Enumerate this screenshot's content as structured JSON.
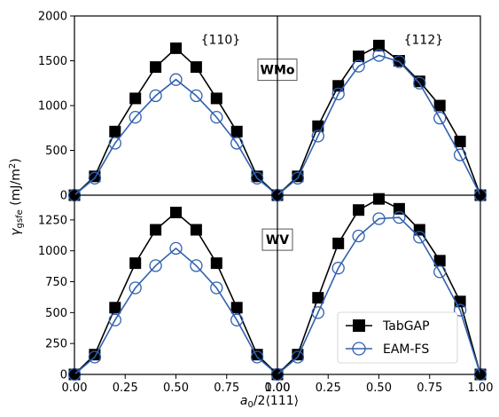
{
  "figure": {
    "xlabel_main": "a",
    "xlabel_sub": "0",
    "xlabel_rest": "/2⟨111⟩",
    "ylabel_main": "γ",
    "ylabel_sub": "gsfe",
    "ylabel_rest": " (mJ/m",
    "ylabel_sup": "2",
    "ylabel_end": ")"
  },
  "legend": {
    "position": "lower-right of bottom-right panel",
    "entries": [
      {
        "label": "TabGAP",
        "color": "#000000",
        "marker": "square-filled"
      },
      {
        "label": "EAM-FS",
        "color": "#3060b0",
        "marker": "circle-open"
      }
    ]
  },
  "chart_data": [
    {
      "type": "line",
      "panel": "top-left",
      "annotation": "{110}",
      "alloy_label": "WMo",
      "x": [
        0.0,
        0.1,
        0.2,
        0.3,
        0.4,
        0.5,
        0.6,
        0.7,
        0.8,
        0.9,
        1.0
      ],
      "xlim": [
        0.0,
        1.0
      ],
      "ylim": [
        0,
        2000
      ],
      "yticks": [
        0,
        500,
        1000,
        1500,
        2000
      ],
      "series": [
        {
          "name": "TabGAP",
          "values": [
            0,
            210,
            710,
            1080,
            1430,
            1640,
            1430,
            1080,
            710,
            210,
            0
          ]
        },
        {
          "name": "EAM-FS",
          "values": [
            0,
            190,
            580,
            870,
            1110,
            1290,
            1110,
            870,
            580,
            190,
            0
          ]
        }
      ]
    },
    {
      "type": "line",
      "panel": "top-right",
      "annotation": "{112}",
      "x": [
        0.0,
        0.1,
        0.2,
        0.3,
        0.4,
        0.5,
        0.6,
        0.7,
        0.8,
        0.9,
        1.0
      ],
      "xlim": [
        0.0,
        1.0
      ],
      "ylim": [
        0,
        2000
      ],
      "series": [
        {
          "name": "TabGAP",
          "values": [
            0,
            210,
            770,
            1220,
            1550,
            1670,
            1500,
            1270,
            1000,
            600,
            0
          ]
        },
        {
          "name": "EAM-FS",
          "values": [
            0,
            190,
            660,
            1130,
            1440,
            1560,
            1490,
            1250,
            860,
            450,
            0
          ]
        }
      ]
    },
    {
      "type": "line",
      "panel": "bottom-left",
      "alloy_label": "WV",
      "x": [
        0.0,
        0.1,
        0.2,
        0.3,
        0.4,
        0.5,
        0.6,
        0.7,
        0.8,
        0.9,
        1.0
      ],
      "xlim": [
        0.0,
        1.0
      ],
      "ylim": [
        0,
        1450
      ],
      "yticks": [
        0,
        250,
        500,
        750,
        1000,
        1250
      ],
      "xticks": [
        "0.00",
        "0.25",
        "0.50",
        "0.75",
        "1.00"
      ],
      "series": [
        {
          "name": "TabGAP",
          "values": [
            0,
            160,
            540,
            900,
            1170,
            1310,
            1170,
            900,
            540,
            160,
            0
          ]
        },
        {
          "name": "EAM-FS",
          "values": [
            0,
            140,
            440,
            700,
            880,
            1020,
            880,
            700,
            440,
            140,
            0
          ]
        }
      ]
    },
    {
      "type": "line",
      "panel": "bottom-right",
      "x": [
        0.0,
        0.1,
        0.2,
        0.3,
        0.4,
        0.5,
        0.6,
        0.7,
        0.8,
        0.9,
        1.0
      ],
      "xlim": [
        0.0,
        1.0
      ],
      "ylim": [
        0,
        1450
      ],
      "xticks": [
        "0.00",
        "0.25",
        "0.50",
        "0.75",
        "1.00"
      ],
      "series": [
        {
          "name": "TabGAP",
          "values": [
            0,
            160,
            620,
            1060,
            1330,
            1420,
            1340,
            1170,
            920,
            590,
            0
          ]
        },
        {
          "name": "EAM-FS",
          "values": [
            0,
            140,
            500,
            860,
            1120,
            1260,
            1270,
            1110,
            830,
            520,
            0
          ]
        }
      ]
    }
  ]
}
